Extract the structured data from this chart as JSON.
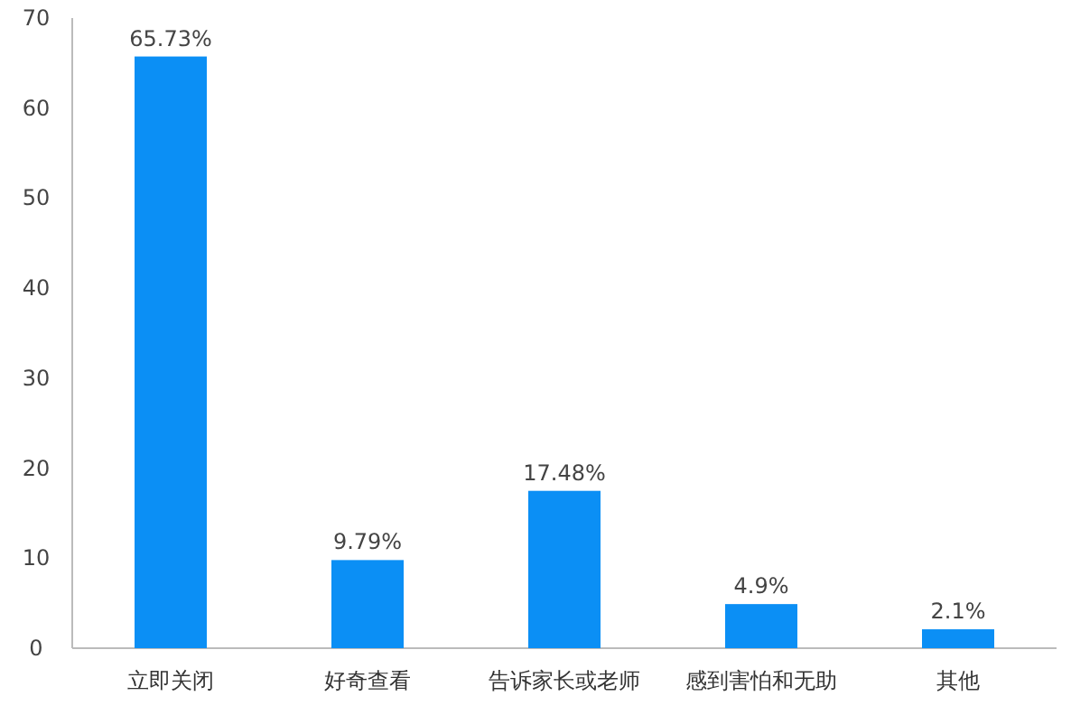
{
  "chart_data": {
    "type": "bar",
    "categories": [
      "立即关闭",
      "好奇查看",
      "告诉家长或老师",
      "感到害怕和无助",
      "其他"
    ],
    "values": [
      65.73,
      9.79,
      17.48,
      4.9,
      2.1
    ],
    "value_labels": [
      "65.73%",
      "9.79%",
      "17.48%",
      "4.9%",
      "2.1%"
    ],
    "color": "#0b8ff5",
    "ylim": [
      0,
      70
    ],
    "yticks": [
      0,
      10,
      20,
      30,
      40,
      50,
      60,
      70
    ],
    "grid": false
  }
}
